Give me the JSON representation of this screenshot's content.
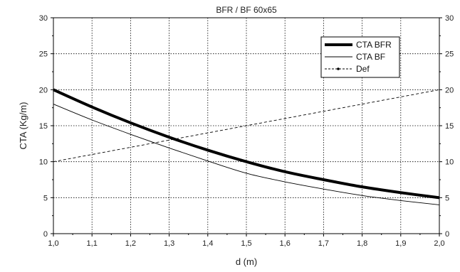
{
  "chart_data": {
    "type": "line",
    "title": "BFR / BF 60x65",
    "xlabel": "d (m)",
    "ylabel": "CTA (Kg/m)",
    "xlim": [
      1.0,
      2.0
    ],
    "ylim": [
      0,
      30
    ],
    "x_ticks": [
      "1,0",
      "1,1",
      "1,2",
      "1,3",
      "1,4",
      "1,5",
      "1,6",
      "1,7",
      "1,8",
      "1,9",
      "2,0"
    ],
    "y_ticks": [
      "0",
      "5",
      "10",
      "15",
      "20",
      "25",
      "30"
    ],
    "grid": true,
    "legend_position": "top-right",
    "series": [
      {
        "name": "CTA BFR",
        "style": "thick-solid",
        "color": "#000000",
        "x": [
          1.0,
          1.1,
          1.2,
          1.3,
          1.4,
          1.5,
          1.6,
          1.7,
          1.8,
          1.9,
          2.0
        ],
        "y": [
          20.0,
          17.6,
          15.4,
          13.4,
          11.6,
          10.0,
          8.6,
          7.5,
          6.5,
          5.7,
          5.0
        ]
      },
      {
        "name": "CTA BF",
        "style": "thin-solid",
        "color": "#000000",
        "x": [
          1.0,
          1.1,
          1.2,
          1.3,
          1.4,
          1.5,
          1.6,
          1.7,
          1.8,
          1.9,
          2.0
        ],
        "y": [
          18.0,
          15.8,
          13.8,
          11.9,
          10.1,
          8.4,
          7.2,
          6.2,
          5.3,
          4.6,
          4.0
        ]
      },
      {
        "name": "Def",
        "style": "dashed",
        "color": "#000000",
        "x": [
          1.0,
          2.0
        ],
        "y": [
          10.0,
          20.0
        ]
      }
    ]
  }
}
